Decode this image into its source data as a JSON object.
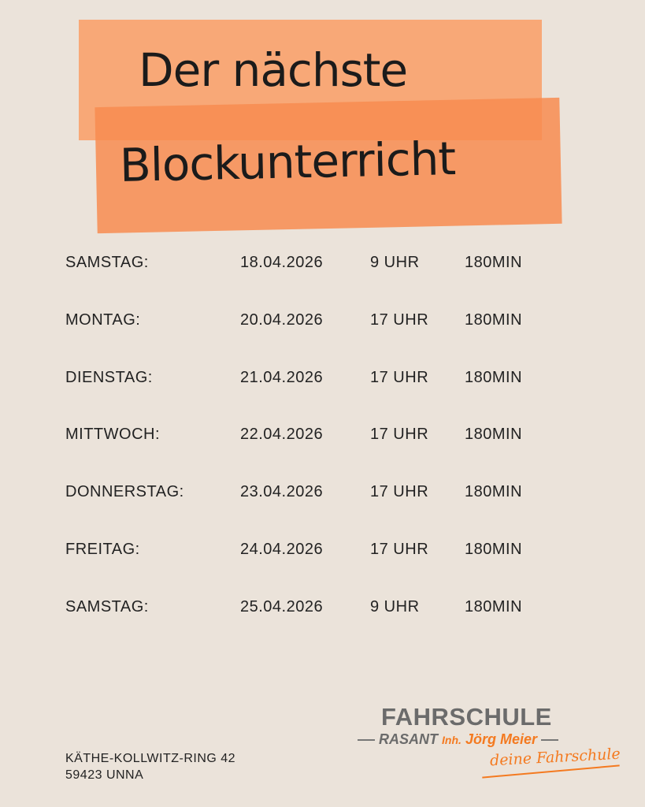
{
  "title": {
    "line1": "Der nächste",
    "line2": "Blockunterricht"
  },
  "schedule": {
    "rows": [
      [
        "SAMSTAG:",
        "18.04.2026",
        "9 UHR",
        "180MIN"
      ],
      [
        "MONTAG:",
        "20.04.2026",
        "17 UHR",
        "180MIN"
      ],
      [
        "DIENSTAG:",
        "21.04.2026",
        "17 UHR",
        "180MIN"
      ],
      [
        "MITTWOCH:",
        "22.04.2026",
        "17 UHR",
        "180MIN"
      ],
      [
        "DONNERSTAG:",
        "23.04.2026",
        "17 UHR",
        "180MIN"
      ],
      [
        "FREITAG:",
        "24.04.2026",
        "17 UHR",
        "180MIN"
      ],
      [
        "SAMSTAG:",
        "25.04.2026",
        "9 UHR",
        "180MIN"
      ]
    ]
  },
  "address": [
    "KÄTHE-KOLLWITZ-RING 42",
    "59423 UNNA"
  ],
  "logo": {
    "name": "FAHRSCHULE",
    "brand": "RASANT",
    "inh": "Inh.",
    "owner": "Jörg Meier",
    "slogan": "deine Fahrschule"
  }
}
